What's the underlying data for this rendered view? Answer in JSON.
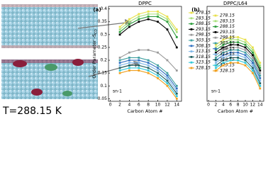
{
  "snapshot_label": "T=288.15 K",
  "chart_data": [
    {
      "type": "line",
      "panel": "(a)",
      "title": "DPPC",
      "xlabel": "Carbon Atom #",
      "ylabel": "Order Parameter -S",
      "ylabel_subscript": "CD",
      "annotation": "sn-1",
      "legend": "outside right",
      "x": [
        2,
        4,
        6,
        8,
        10,
        12,
        14
      ],
      "xlim": [
        -0.4,
        15
      ],
      "xticks": [
        0,
        2,
        4,
        6,
        8,
        10,
        12,
        14
      ],
      "ylim": [
        0.04,
        0.41
      ],
      "yticks": [
        0.05,
        0.1,
        0.15,
        0.2,
        0.25,
        0.3,
        0.35,
        0.4
      ],
      "series": [
        {
          "name": "278.15",
          "color": "#e8e04a",
          "values": [
            0.33,
            0.36,
            0.38,
            0.39,
            0.39,
            0.37,
            0.32
          ]
        },
        {
          "name": "283.15",
          "color": "#a8e07a",
          "values": [
            0.32,
            0.35,
            0.37,
            0.38,
            0.38,
            0.36,
            0.31
          ]
        },
        {
          "name": "288.15",
          "color": "#2e9e3e",
          "values": [
            0.31,
            0.34,
            0.36,
            0.37,
            0.37,
            0.35,
            0.29
          ]
        },
        {
          "name": "293.15",
          "color": "#000000",
          "values": [
            0.3,
            0.33,
            0.35,
            0.36,
            0.35,
            0.32,
            0.25
          ]
        },
        {
          "name": "298.15",
          "color": "#9a9a9a",
          "values": [
            0.21,
            0.23,
            0.24,
            0.24,
            0.23,
            0.2,
            0.16
          ]
        },
        {
          "name": "303.15",
          "color": "#3fa0a0",
          "values": [
            0.2,
            0.21,
            0.21,
            0.2,
            0.18,
            0.15,
            0.1
          ]
        },
        {
          "name": "308.15",
          "color": "#2f6fc0",
          "values": [
            0.19,
            0.2,
            0.2,
            0.19,
            0.17,
            0.14,
            0.09
          ]
        },
        {
          "name": "313.15",
          "color": "#80b8e8",
          "values": [
            0.18,
            0.19,
            0.19,
            0.18,
            0.16,
            0.13,
            0.08
          ]
        },
        {
          "name": "318.15",
          "color": "#1f6060",
          "values": [
            0.17,
            0.18,
            0.18,
            0.17,
            0.15,
            0.12,
            0.07
          ]
        },
        {
          "name": "323.15",
          "color": "#30c8d8",
          "values": [
            0.16,
            0.17,
            0.17,
            0.16,
            0.14,
            0.11,
            0.06
          ]
        },
        {
          "name": "328.15",
          "color": "#f0a020",
          "values": [
            0.15,
            0.16,
            0.16,
            0.15,
            0.13,
            0.1,
            0.05
          ]
        }
      ]
    },
    {
      "type": "line",
      "panel": "(b)",
      "title": "DPPC/L64",
      "xlabel": "Carbon Atom #",
      "annotation": "sn-1",
      "legend": "upper left",
      "x": [
        2,
        4,
        6,
        8,
        10,
        12,
        14
      ],
      "xlim": [
        -0.4,
        15
      ],
      "xticks": [
        0,
        2,
        4,
        6,
        8,
        10,
        12,
        14
      ],
      "ylim": [
        0.04,
        0.41
      ],
      "series": [
        {
          "name": "278.15",
          "color": "#e8e04a",
          "values": [
            0.26,
            0.28,
            0.29,
            0.29,
            0.28,
            0.25,
            0.19
          ]
        },
        {
          "name": "283.15",
          "color": "#a8e07a",
          "values": [
            0.25,
            0.27,
            0.28,
            0.28,
            0.27,
            0.24,
            0.18
          ]
        },
        {
          "name": "288.15",
          "color": "#2e9e3e",
          "values": [
            0.24,
            0.26,
            0.27,
            0.27,
            0.26,
            0.23,
            0.17
          ]
        },
        {
          "name": "293.15",
          "color": "#000000",
          "values": [
            0.23,
            0.25,
            0.26,
            0.26,
            0.25,
            0.22,
            0.16
          ]
        },
        {
          "name": "298.15",
          "color": "#9a9a9a",
          "values": [
            0.22,
            0.24,
            0.25,
            0.25,
            0.24,
            0.21,
            0.15
          ]
        },
        {
          "name": "303.15",
          "color": "#3fa0a0",
          "values": [
            0.21,
            0.23,
            0.24,
            0.24,
            0.23,
            0.2,
            0.14
          ]
        },
        {
          "name": "308.15",
          "color": "#2f6fc0",
          "values": [
            0.2,
            0.22,
            0.23,
            0.23,
            0.22,
            0.19,
            0.13
          ]
        },
        {
          "name": "313.15",
          "color": "#80b8e8",
          "values": [
            0.19,
            0.21,
            0.22,
            0.22,
            0.21,
            0.18,
            0.12
          ]
        },
        {
          "name": "318.15",
          "color": "#1f6060",
          "values": [
            0.18,
            0.2,
            0.21,
            0.21,
            0.2,
            0.17,
            0.11
          ]
        },
        {
          "name": "323.15",
          "color": "#30c8d8",
          "values": [
            0.17,
            0.19,
            0.2,
            0.2,
            0.19,
            0.16,
            0.1
          ]
        },
        {
          "name": "328.15",
          "color": "#f0a020",
          "values": [
            0.16,
            0.18,
            0.19,
            0.19,
            0.18,
            0.15,
            0.09
          ]
        }
      ]
    }
  ]
}
